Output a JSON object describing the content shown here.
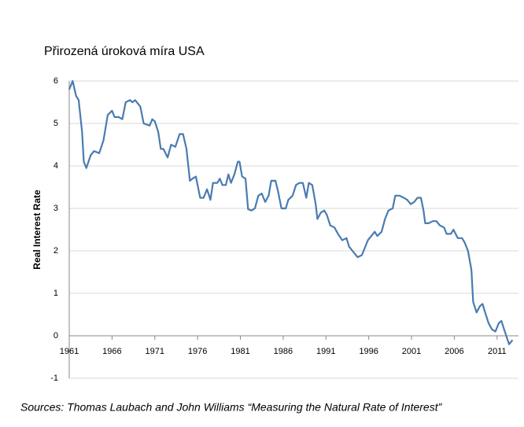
{
  "chart_data": {
    "type": "line",
    "title": "Přirozená úroková míra USA",
    "y_label": "Real Interest Rate",
    "source": "Sources: Thomas Laubach and John Williams “Measuring the Natural Rate of Interest”",
    "x": [
      1961.0,
      1961.4,
      1961.8,
      1962.1,
      1962.5,
      1962.7,
      1963.0,
      1963.5,
      1963.9,
      1964.5,
      1965.0,
      1965.5,
      1966.0,
      1966.3,
      1966.8,
      1967.2,
      1967.6,
      1968.1,
      1968.4,
      1968.7,
      1969.3,
      1969.7,
      1970.4,
      1970.7,
      1971.0,
      1971.4,
      1971.7,
      1972.0,
      1972.5,
      1972.9,
      1973.4,
      1973.9,
      1974.3,
      1974.7,
      1975.1,
      1975.4,
      1975.8,
      1976.3,
      1976.7,
      1977.1,
      1977.5,
      1977.8,
      1978.3,
      1978.6,
      1978.9,
      1979.3,
      1979.6,
      1979.9,
      1980.3,
      1980.7,
      1980.9,
      1981.2,
      1981.6,
      1981.9,
      1982.3,
      1982.7,
      1983.1,
      1983.5,
      1983.9,
      1984.3,
      1984.6,
      1985.1,
      1985.4,
      1985.8,
      1986.3,
      1986.6,
      1987.1,
      1987.5,
      1987.9,
      1988.3,
      1988.7,
      1989.0,
      1989.4,
      1989.8,
      1990.0,
      1990.4,
      1990.8,
      1991.1,
      1991.5,
      1992.0,
      1992.4,
      1992.9,
      1993.4,
      1993.7,
      1994.3,
      1994.7,
      1995.2,
      1995.6,
      1995.9,
      1996.3,
      1996.7,
      1997.0,
      1997.5,
      1997.9,
      1998.3,
      1998.8,
      1999.1,
      1999.6,
      2000.1,
      2000.5,
      2000.9,
      2001.3,
      2001.7,
      2002.1,
      2002.4,
      2002.6,
      2003.0,
      2003.5,
      2003.9,
      2004.3,
      2004.8,
      2005.1,
      2005.6,
      2005.9,
      2006.4,
      2006.9,
      2007.2,
      2007.6,
      2008.0,
      2008.2,
      2008.6,
      2009.0,
      2009.3,
      2009.6,
      2010.0,
      2010.4,
      2010.8,
      2011.2,
      2011.5,
      2011.9,
      2012.4,
      2012.8
    ],
    "series": [
      {
        "color": "#4a7bb0",
        "values": [
          5.8,
          6.0,
          5.65,
          5.55,
          4.8,
          4.1,
          3.95,
          4.25,
          4.35,
          4.3,
          4.6,
          5.2,
          5.3,
          5.15,
          5.15,
          5.1,
          5.5,
          5.55,
          5.5,
          5.55,
          5.4,
          5.0,
          4.95,
          5.1,
          5.05,
          4.8,
          4.4,
          4.4,
          4.2,
          4.5,
          4.45,
          4.75,
          4.75,
          4.4,
          3.65,
          3.7,
          3.75,
          3.25,
          3.25,
          3.45,
          3.2,
          3.6,
          3.6,
          3.7,
          3.55,
          3.55,
          3.8,
          3.6,
          3.8,
          4.1,
          4.1,
          3.75,
          3.7,
          2.98,
          2.95,
          3.0,
          3.3,
          3.35,
          3.15,
          3.3,
          3.65,
          3.65,
          3.4,
          3.0,
          3.0,
          3.2,
          3.3,
          3.55,
          3.6,
          3.6,
          3.25,
          3.6,
          3.55,
          3.1,
          2.75,
          2.9,
          2.95,
          2.85,
          2.6,
          2.55,
          2.4,
          2.25,
          2.3,
          2.1,
          1.95,
          1.85,
          1.9,
          2.1,
          2.25,
          2.35,
          2.45,
          2.35,
          2.45,
          2.75,
          2.95,
          3.0,
          3.3,
          3.3,
          3.25,
          3.2,
          3.1,
          3.15,
          3.25,
          3.25,
          2.95,
          2.65,
          2.65,
          2.7,
          2.7,
          2.6,
          2.55,
          2.4,
          2.4,
          2.5,
          2.3,
          2.3,
          2.2,
          2.0,
          1.55,
          0.8,
          0.55,
          0.7,
          0.75,
          0.55,
          0.3,
          0.15,
          0.1,
          0.3,
          0.35,
          0.1,
          -0.2,
          -0.1
        ]
      }
    ],
    "xlim": [
      1961,
      2013.5
    ],
    "ylim": [
      -1,
      6
    ],
    "xticks": [
      1961,
      1966,
      1971,
      1976,
      1981,
      1986,
      1991,
      1996,
      2001,
      2006,
      2011
    ],
    "yticks": [
      -1,
      0,
      1,
      2,
      3,
      4,
      5,
      6
    ],
    "grid": true
  }
}
